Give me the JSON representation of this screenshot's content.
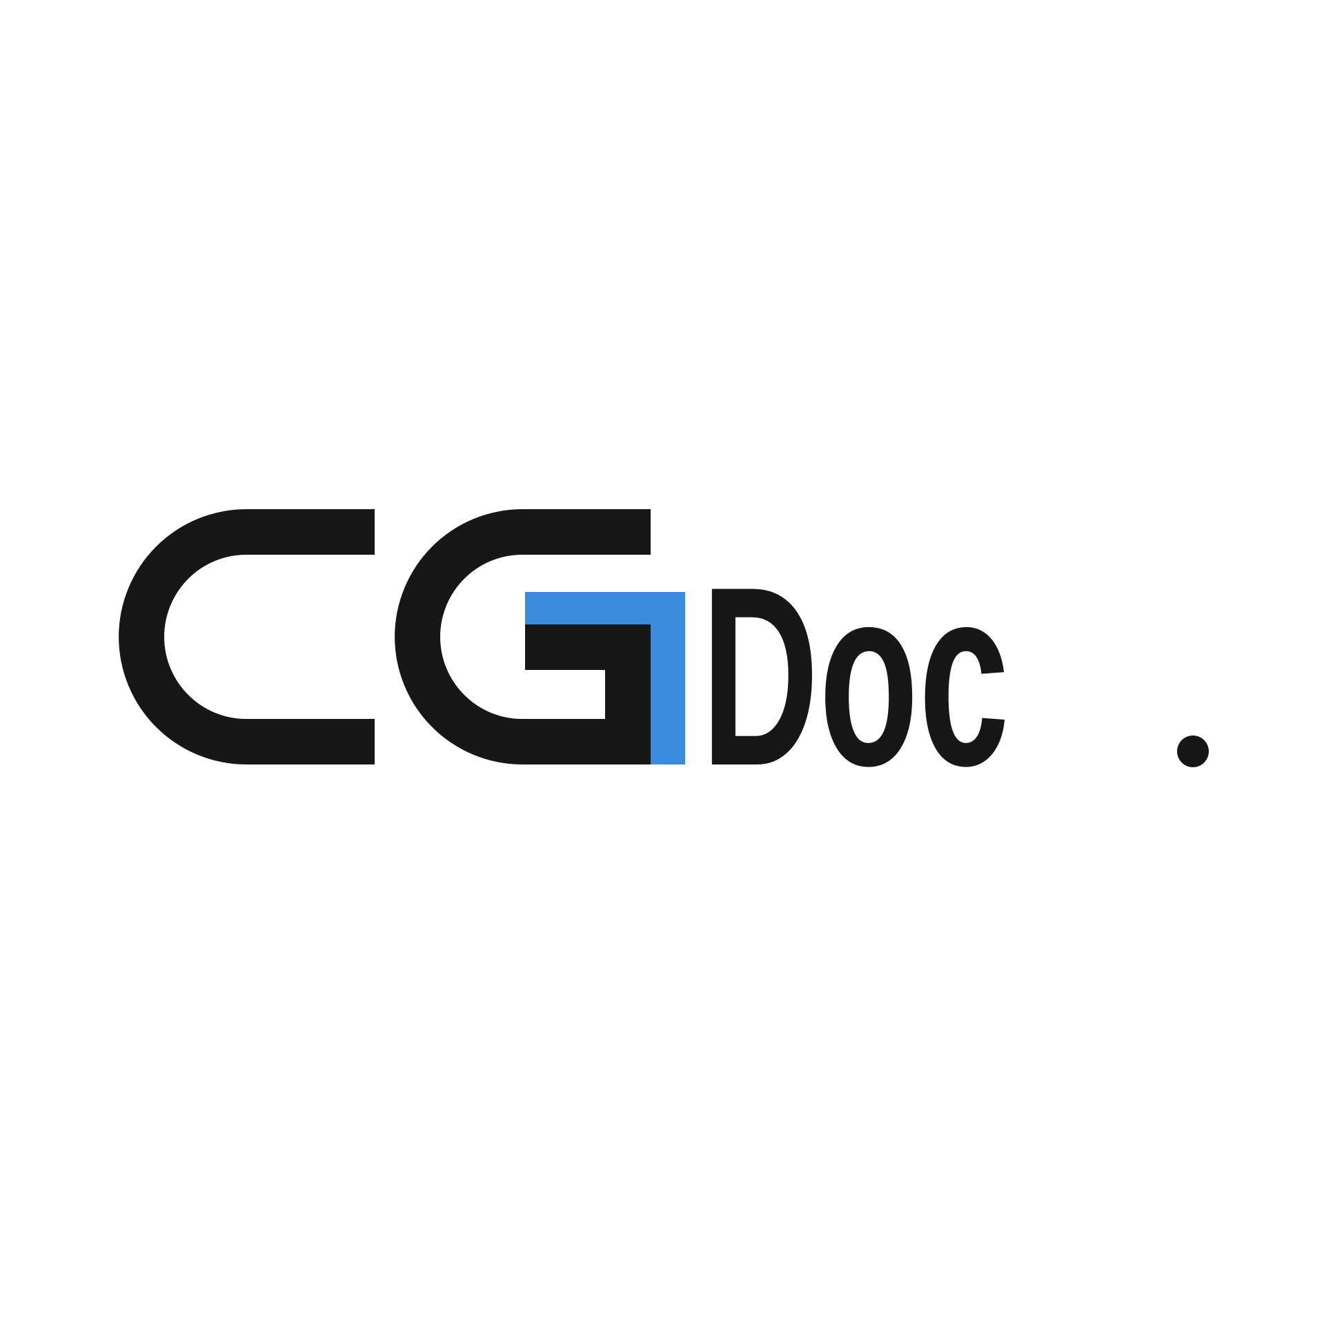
{
  "logo": {
    "text": "CGDoc.",
    "mark_letters": "CG",
    "word": "Doc",
    "period": ".",
    "colors": {
      "dark": "#171717",
      "accent": "#3a8ade",
      "background": "#ffffff"
    }
  }
}
